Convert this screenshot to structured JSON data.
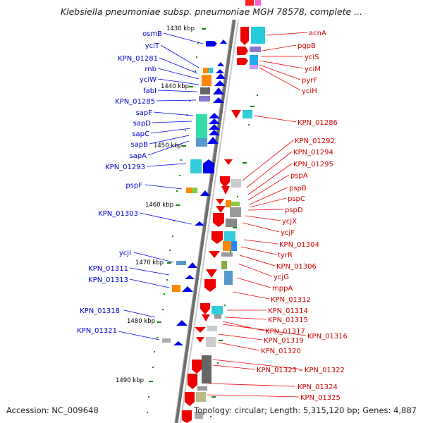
{
  "title": "Klebsiella pneumoniae subsp. pneumoniae MGH 78578, complete ...",
  "footer": {
    "accession": "Accession: NC_009648",
    "summary": "Topology: circular; Length: 5,315,120 bp; Genes: 4,887"
  },
  "colors": {
    "left_strand": "#0000ee",
    "right_strand": "#ee0000",
    "axis": "#888888",
    "tick": "#008800"
  },
  "kbp_ticks": [
    "1430 kbp",
    "1440 kbp",
    "1450 kbp",
    "1460 kbp",
    "1470 kbp",
    "1480 kbp",
    "1490 kbp"
  ],
  "left_genes": [
    "osmB",
    "yciT",
    "KPN_01281",
    "rnb",
    "yciW",
    "fabI",
    "KPN_01285",
    "sapF",
    "sapD",
    "sapC",
    "sapB",
    "sapA",
    "KPN_01293",
    "pspF",
    "KPN_01303",
    "ycjI",
    "KPN_01311",
    "KPN_01313",
    "KPN_01318",
    "KPN_01321"
  ],
  "right_genes": [
    "acnA",
    "pgpB",
    "yciS",
    "yciM",
    "pyrF",
    "yciH",
    "KPN_01286",
    "KPN_01292",
    "KPN_01294",
    "KPN_01295",
    "pspA",
    "pspB",
    "pspC",
    "pspD",
    "ycjX",
    "ycjF",
    "KPN_01304",
    "tyrR",
    "KPN_01306",
    "ycjG",
    "mppA",
    "KPN_01312",
    "KPN_01314",
    "KPN_01315",
    "KPN_01317",
    "KPN_01316",
    "KPN_01319",
    "KPN_01320",
    "KPN_01323",
    "KPN_01322",
    "KPN_01324",
    "KPN_01325"
  ]
}
